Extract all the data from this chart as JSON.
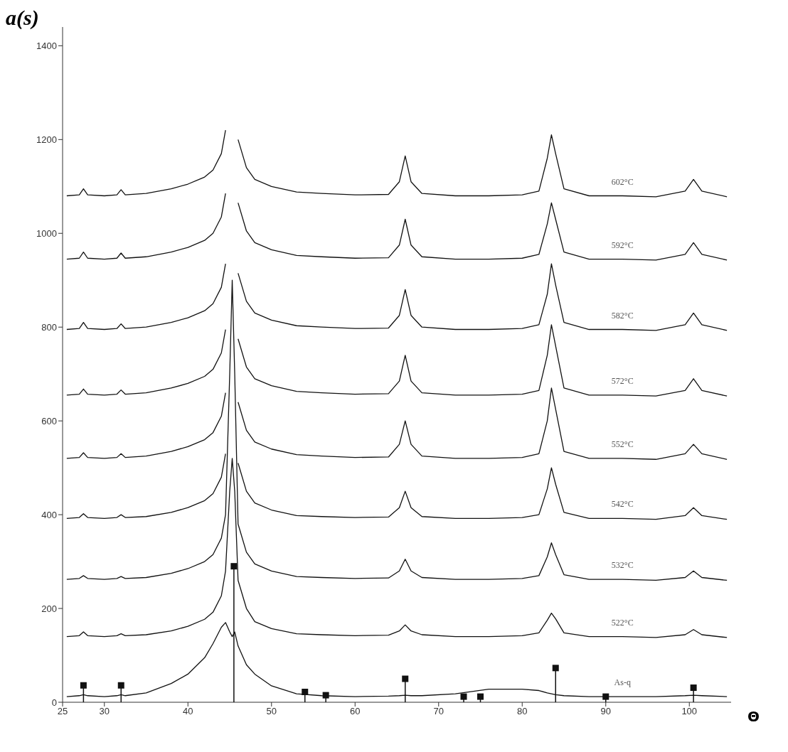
{
  "chart_data": {
    "type": "line",
    "xlabel": "Θ",
    "ylabel": "a(s)",
    "xlim": [
      25,
      105
    ],
    "ylim": [
      0,
      1440
    ],
    "xticks": [
      25,
      30,
      40,
      50,
      60,
      70,
      80,
      90,
      100
    ],
    "yticks": [
      0,
      200,
      400,
      600,
      800,
      1000,
      1200,
      1400
    ],
    "grid": false,
    "legend": false,
    "marker": "none",
    "line_style": "solid",
    "x": [
      25.5,
      27,
      27.5,
      28,
      30,
      31.5,
      32,
      32.5,
      35,
      38,
      40,
      42,
      43,
      44,
      44.5,
      45,
      45.3,
      45.6,
      46,
      47,
      48,
      50,
      53,
      56,
      60,
      64,
      65.3,
      66,
      66.7,
      68,
      72,
      76,
      80,
      82,
      83,
      83.5,
      84,
      85,
      88,
      92,
      96,
      99.5,
      100.5,
      101.5,
      104.5
    ],
    "series": [
      {
        "name": "602°C",
        "color": "#111111",
        "values": [
          1080,
          1082,
          1095,
          1082,
          1080,
          1082,
          1093,
          1082,
          1085,
          1095,
          1105,
          1120,
          1135,
          1170,
          1220,
          null,
          null,
          null,
          1200,
          1140,
          1115,
          1100,
          1088,
          1085,
          1082,
          1083,
          1110,
          1165,
          1110,
          1085,
          1080,
          1080,
          1082,
          1090,
          1160,
          1210,
          1170,
          1095,
          1080,
          1080,
          1078,
          1090,
          1115,
          1090,
          1078
        ]
      },
      {
        "name": "592°C",
        "color": "#111111",
        "values": [
          945,
          947,
          960,
          947,
          945,
          947,
          958,
          947,
          950,
          960,
          970,
          985,
          1000,
          1035,
          1085,
          null,
          null,
          null,
          1065,
          1005,
          980,
          965,
          953,
          950,
          947,
          948,
          975,
          1030,
          975,
          950,
          945,
          945,
          947,
          955,
          1020,
          1065,
          1030,
          960,
          945,
          945,
          943,
          955,
          980,
          955,
          943
        ]
      },
      {
        "name": "582°C",
        "color": "#111111",
        "values": [
          795,
          797,
          810,
          797,
          795,
          797,
          807,
          797,
          800,
          810,
          820,
          835,
          850,
          885,
          935,
          null,
          null,
          null,
          915,
          855,
          830,
          815,
          803,
          800,
          797,
          798,
          825,
          880,
          825,
          800,
          795,
          795,
          797,
          805,
          870,
          935,
          890,
          810,
          795,
          795,
          793,
          805,
          830,
          805,
          793
        ]
      },
      {
        "name": "572°C",
        "color": "#111111",
        "values": [
          655,
          657,
          668,
          657,
          655,
          657,
          666,
          657,
          660,
          670,
          680,
          695,
          710,
          745,
          795,
          null,
          null,
          null,
          775,
          715,
          690,
          675,
          663,
          660,
          657,
          658,
          685,
          740,
          685,
          660,
          655,
          655,
          657,
          665,
          740,
          805,
          760,
          670,
          655,
          655,
          653,
          665,
          690,
          665,
          653
        ]
      },
      {
        "name": "552°C",
        "color": "#111111",
        "values": [
          520,
          522,
          532,
          522,
          520,
          522,
          530,
          522,
          525,
          535,
          545,
          560,
          575,
          610,
          660,
          null,
          null,
          null,
          640,
          580,
          555,
          540,
          528,
          525,
          522,
          523,
          550,
          600,
          550,
          525,
          520,
          520,
          522,
          530,
          600,
          670,
          625,
          535,
          520,
          520,
          518,
          530,
          550,
          530,
          518
        ]
      },
      {
        "name": "542°C",
        "color": "#111111",
        "values": [
          392,
          394,
          402,
          394,
          392,
          394,
          400,
          394,
          396,
          405,
          415,
          430,
          445,
          480,
          530,
          null,
          null,
          null,
          510,
          450,
          425,
          410,
          398,
          396,
          394,
          395,
          415,
          450,
          415,
          396,
          392,
          392,
          394,
          400,
          455,
          500,
          465,
          405,
          392,
          392,
          390,
          398,
          415,
          398,
          390
        ]
      },
      {
        "name": "532°C",
        "color": "#111111",
        "values": [
          262,
          264,
          270,
          264,
          262,
          264,
          268,
          264,
          266,
          275,
          285,
          300,
          315,
          350,
          400,
          700,
          900,
          700,
          380,
          320,
          295,
          280,
          268,
          266,
          264,
          265,
          280,
          305,
          280,
          266,
          262,
          262,
          264,
          270,
          310,
          340,
          315,
          272,
          262,
          262,
          260,
          266,
          280,
          266,
          260
        ]
      },
      {
        "name": "522°C",
        "color": "#111111",
        "values": [
          140,
          142,
          150,
          142,
          140,
          142,
          146,
          142,
          144,
          152,
          162,
          177,
          192,
          227,
          280,
          450,
          520,
          450,
          260,
          200,
          172,
          157,
          146,
          144,
          142,
          143,
          152,
          165,
          152,
          144,
          140,
          140,
          142,
          148,
          175,
          190,
          178,
          148,
          140,
          140,
          138,
          144,
          155,
          144,
          138
        ]
      },
      {
        "name": "As-q",
        "color": "#111111",
        "values": [
          12,
          14,
          16,
          14,
          12,
          14,
          16,
          14,
          20,
          40,
          60,
          95,
          125,
          160,
          170,
          150,
          140,
          150,
          120,
          80,
          60,
          35,
          18,
          14,
          12,
          13,
          14,
          15,
          14,
          14,
          18,
          28,
          28,
          25,
          20,
          18,
          16,
          14,
          12,
          12,
          12,
          14,
          15,
          14,
          12
        ]
      },
      {
        "type": "lollipop",
        "color": "#111111",
        "marker": "square",
        "x": [
          27.5,
          32,
          45.5,
          54,
          56.5,
          66,
          73,
          75,
          84,
          90,
          100.5
        ],
        "values": [
          36,
          36,
          290,
          22,
          15,
          50,
          12,
          12,
          73,
          12,
          31
        ]
      }
    ]
  }
}
